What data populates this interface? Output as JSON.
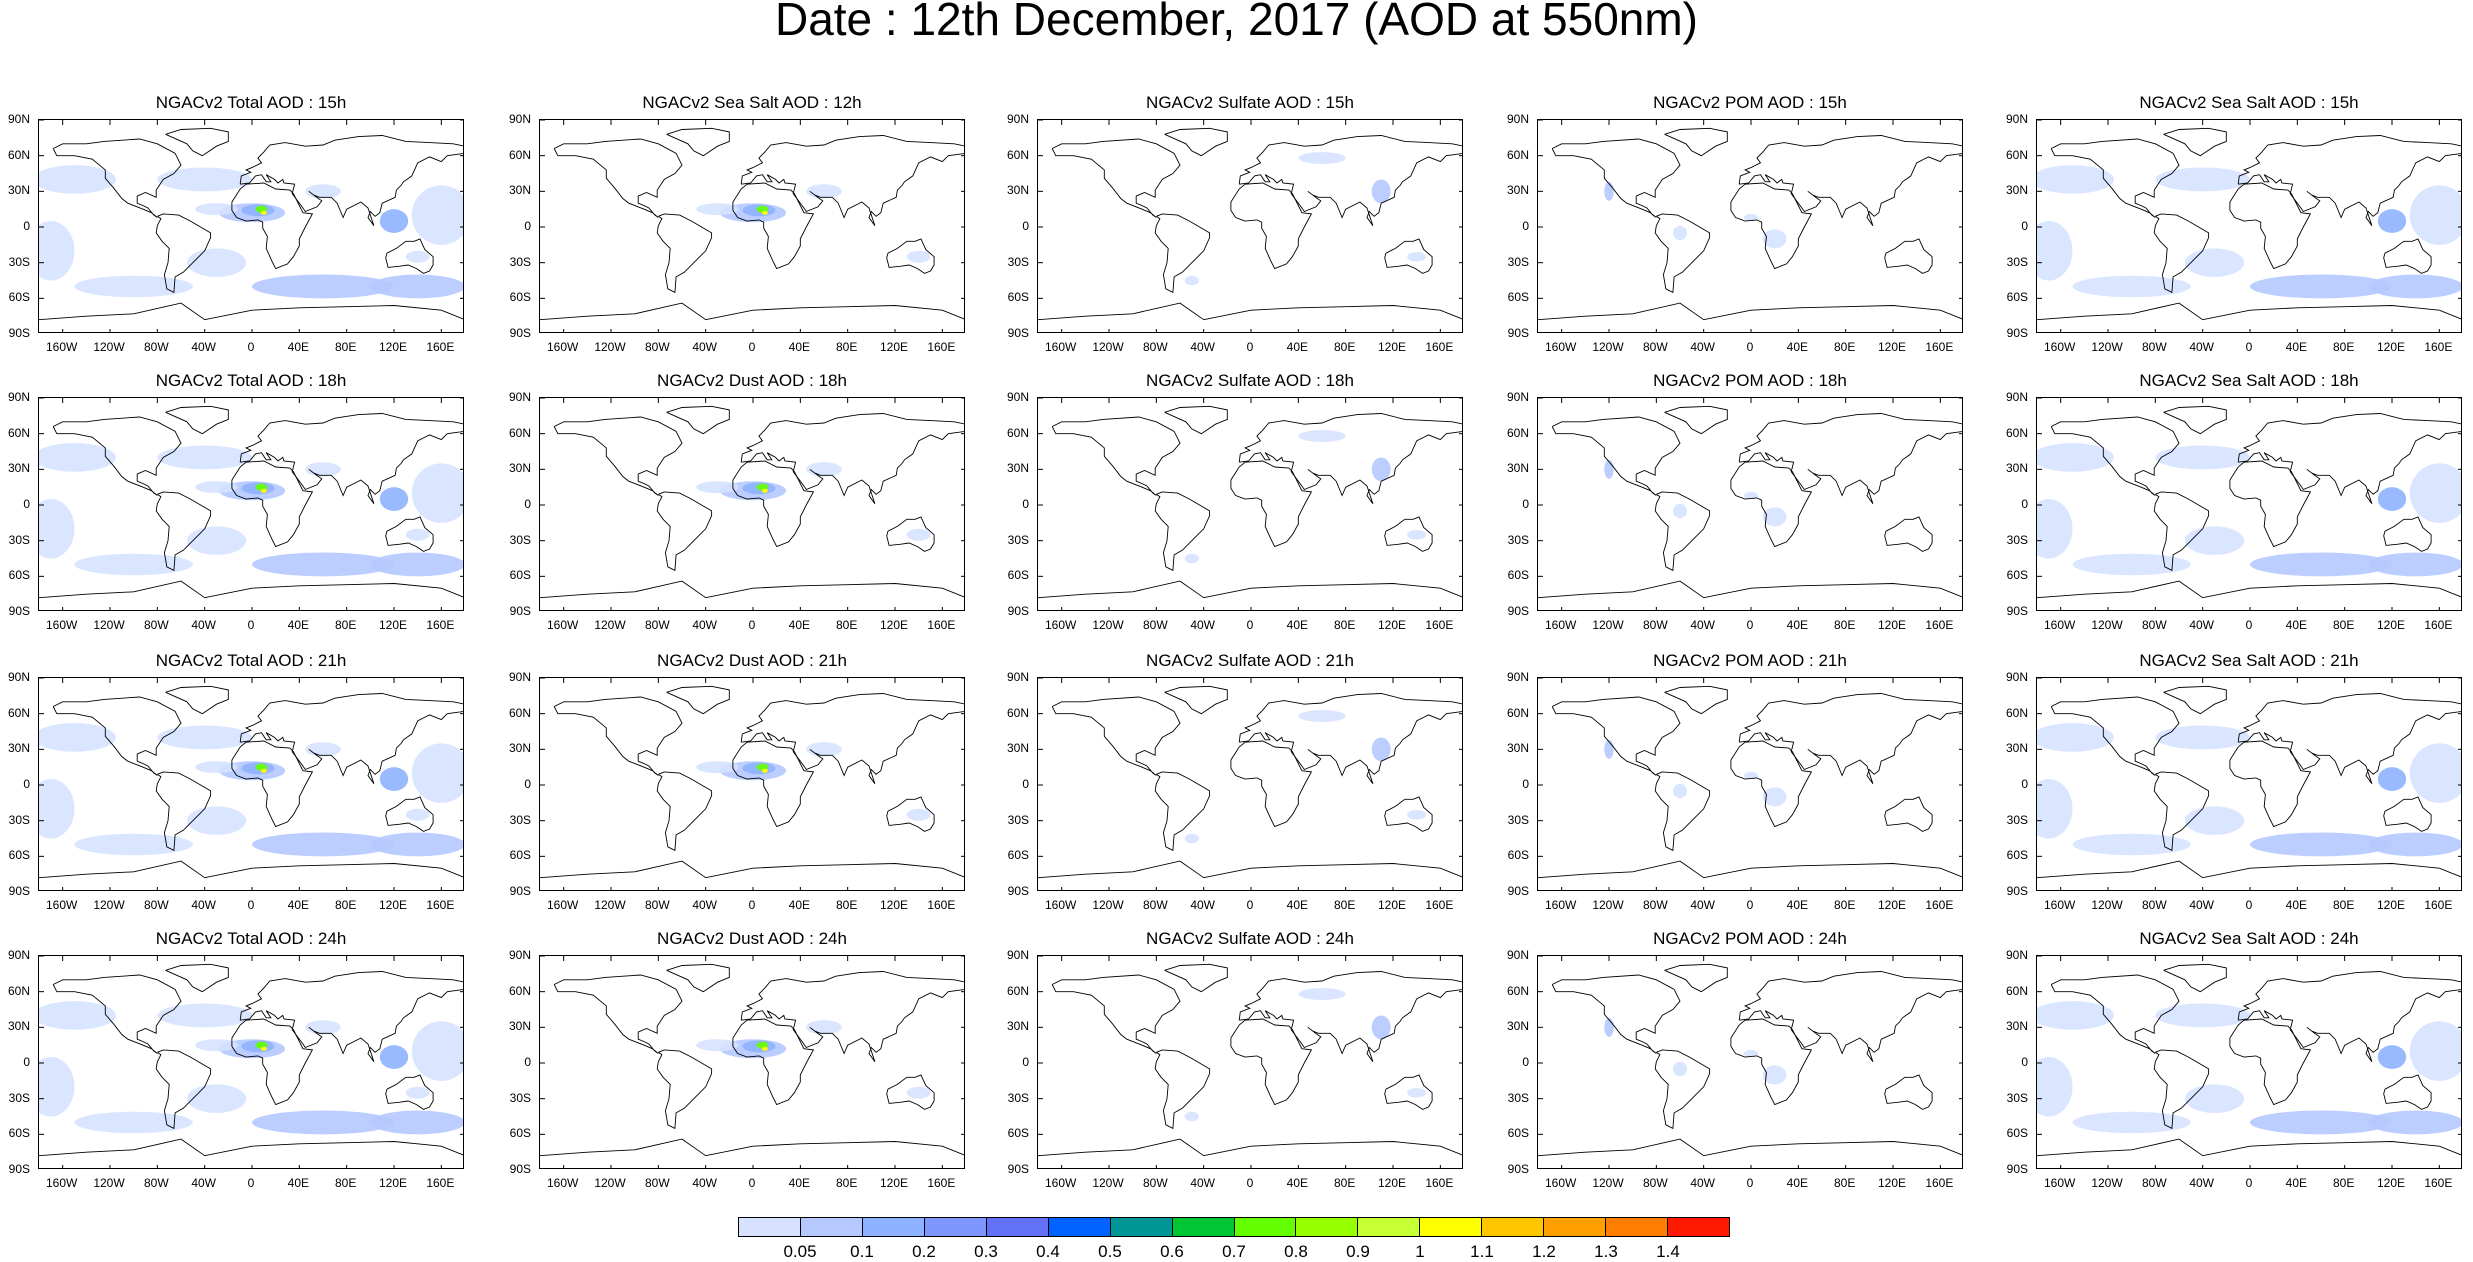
{
  "title": "Date : 12th December, 2017 (AOD at 550nm)",
  "panels": [
    [
      "NGACv2 Total AOD : 15h",
      "NGACv2 Sea Salt  AOD : 12h",
      "NGACv2 Sulfate AOD : 15h",
      "NGACv2 POM AOD : 15h",
      "NGACv2 Sea Salt AOD : 15h"
    ],
    [
      "NGACv2 Total AOD : 18h",
      "NGACv2 Dust AOD : 18h",
      "NGACv2 Sulfate AOD : 18h",
      "NGACv2 POM AOD : 18h",
      "NGACv2 Sea Salt AOD : 18h"
    ],
    [
      "NGACv2 Total AOD : 21h",
      "NGACv2 Dust AOD : 21h",
      "NGACv2 Sulfate AOD : 21h",
      "NGACv2 POM AOD : 21h",
      "NGACv2 Sea Salt AOD : 21h"
    ],
    [
      "NGACv2 Total AOD : 24h",
      "NGACv2 Dust AOD : 24h",
      "NGACv2 Sulfate AOD : 24h",
      "NGACv2 POM AOD : 24h",
      "NGACv2 Sea Salt  AOD : 24h"
    ]
  ],
  "lat_ticks": [
    "90N",
    "60N",
    "30N",
    "0",
    "30S",
    "60S",
    "90S"
  ],
  "lon_ticks": [
    "160W",
    "120W",
    "80W",
    "40W",
    "0",
    "40E",
    "80E",
    "120E",
    "160E"
  ],
  "colorbar": {
    "labels": [
      "0.05",
      "0.1",
      "0.2",
      "0.3",
      "0.4",
      "0.5",
      "0.6",
      "0.7",
      "0.8",
      "0.9",
      "1",
      "1.1",
      "1.2",
      "1.3",
      "1.4"
    ],
    "colors": [
      "#ffffff",
      "#d6e2ff",
      "#b5c9ff",
      "#8eb2ff",
      "#7f96ff",
      "#6370f8",
      "#0063ff",
      "#009696",
      "#00c633",
      "#63ff00",
      "#96ff00",
      "#c6ff33",
      "#ffff00",
      "#ffc600",
      "#ffa000",
      "#ff7d00",
      "#ff1900"
    ]
  },
  "colors": {
    "land_outline": "#000000",
    "aod_low": "#d6e2ff",
    "aod_mid": "#b5c9ff",
    "aod_high": "#8eb2ff"
  }
}
